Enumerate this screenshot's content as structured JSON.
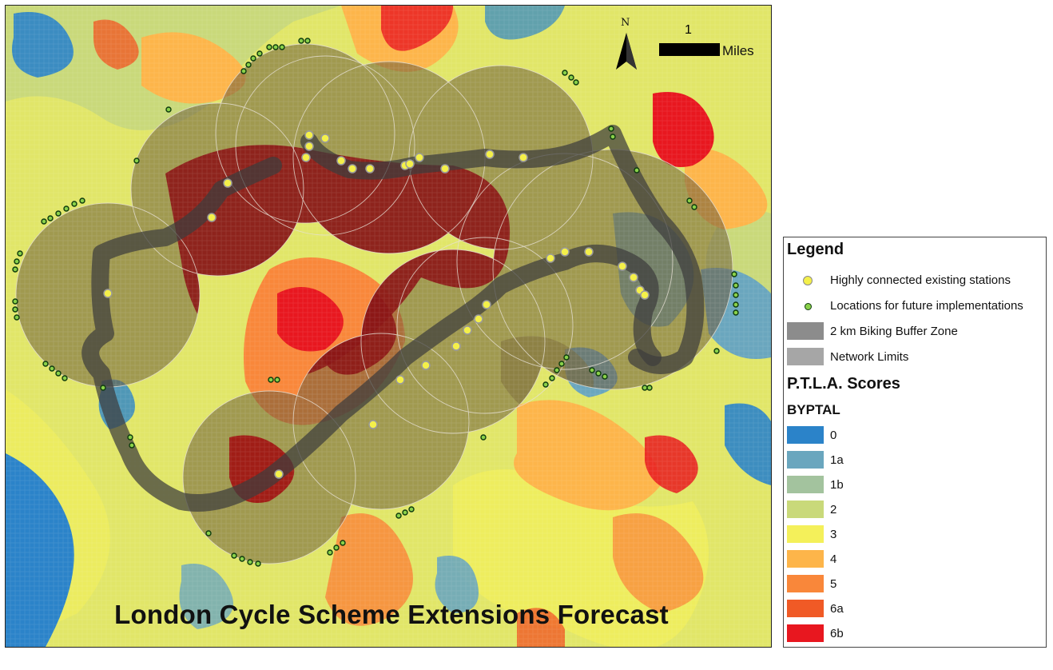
{
  "title": "London Cycle Scheme Extensions Forecast",
  "north_label": "N",
  "scale": {
    "value": "1",
    "unit": "Miles"
  },
  "legend": {
    "heading": "Legend",
    "items": [
      {
        "label": "Highly connected existing stations",
        "symbol": "yellow-dot"
      },
      {
        "label": "Locations for future implementations",
        "symbol": "green-dot"
      },
      {
        "label": "2 km Biking Buffer Zone",
        "color": "#8c8c8c"
      },
      {
        "label": "Network Limits",
        "color": "#a6a6a6"
      }
    ],
    "scores_heading": "P.T.L.A. Scores",
    "field_name": "BYPTAL",
    "classes": [
      {
        "label": "0",
        "color": "#2b83c9"
      },
      {
        "label": "1a",
        "color": "#6aa6be"
      },
      {
        "label": "1b",
        "color": "#a3c39e"
      },
      {
        "label": "2",
        "color": "#c9d97a"
      },
      {
        "label": "3",
        "color": "#f4f05a"
      },
      {
        "label": "4",
        "color": "#fdb54a"
      },
      {
        "label": "5",
        "color": "#f9873a"
      },
      {
        "label": "6a",
        "color": "#f05a26"
      },
      {
        "label": "6b",
        "color": "#e8171f"
      }
    ]
  },
  "colors": {
    "buffer_fill": "#5a2a1a",
    "network_line": "#3d3d3d",
    "station_fill": "#f4f04a",
    "future_fill": "#8ad14a",
    "future_stroke": "#0d3a0d"
  }
}
